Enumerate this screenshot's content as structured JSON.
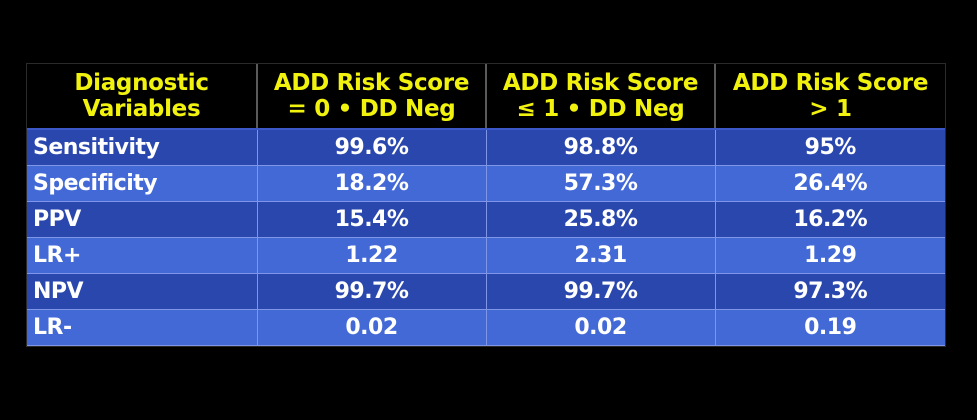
{
  "colors": {
    "background": "#000000",
    "header_text": "#f2f20f",
    "row_dark": "#2a47ae",
    "row_light": "#4269d6",
    "cell_text": "#ffffff"
  },
  "table": {
    "headers": [
      [
        "Diagnostic",
        "Variables"
      ],
      [
        "ADD Risk Score",
        "= 0 • DD Neg"
      ],
      [
        "ADD Risk Score",
        "≤ 1 • DD Neg"
      ],
      [
        "ADD Risk Score",
        "> 1"
      ]
    ],
    "rows": [
      [
        "Sensitivity",
        "99.6%",
        "98.8%",
        "95%"
      ],
      [
        "Specificity",
        "18.2%",
        "57.3%",
        "26.4%"
      ],
      [
        "PPV",
        "15.4%",
        "25.8%",
        "16.2%"
      ],
      [
        "LR+",
        "1.22",
        "2.31",
        "1.29"
      ],
      [
        "NPV",
        "99.7%",
        "99.7%",
        "97.3%"
      ],
      [
        "LR-",
        "0.02",
        "0.02",
        "0.19"
      ]
    ]
  }
}
